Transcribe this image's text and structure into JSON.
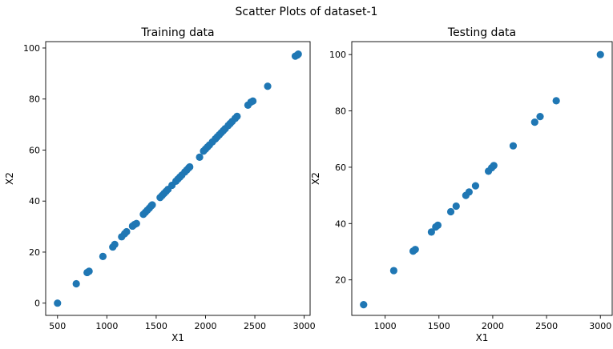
{
  "figure": {
    "suptitle": "Scatter Plots of dataset-1",
    "point_color": "#1f77b4"
  },
  "chart_data": [
    {
      "type": "scatter",
      "title": "Training data",
      "xlabel": "X1",
      "ylabel": "X2",
      "xlim": [
        380,
        3060
      ],
      "ylim": [
        -4.8,
        102.5
      ],
      "xticks": [
        500,
        1000,
        1500,
        2000,
        2500,
        3000
      ],
      "yticks": [
        0,
        20,
        40,
        60,
        80,
        100
      ],
      "grid": false,
      "x": [
        500,
        690,
        800,
        820,
        960,
        1060,
        1080,
        1150,
        1180,
        1200,
        1260,
        1280,
        1300,
        1370,
        1390,
        1410,
        1430,
        1450,
        1460,
        1540,
        1560,
        1580,
        1600,
        1620,
        1660,
        1700,
        1720,
        1740,
        1760,
        1790,
        1810,
        1830,
        1840,
        1940,
        1980,
        2000,
        2020,
        2040,
        2070,
        2100,
        2120,
        2140,
        2160,
        2180,
        2200,
        2230,
        2250,
        2270,
        2300,
        2320,
        2430,
        2460,
        2480,
        2630,
        2910,
        2930,
        2940
      ],
      "y": [
        0,
        7.6,
        12,
        12.5,
        18.3,
        22,
        23,
        26,
        27.2,
        28,
        30.2,
        30.8,
        31.2,
        34.8,
        35.6,
        36.4,
        37.2,
        38.1,
        38.5,
        41.4,
        42.2,
        43,
        43.8,
        44.6,
        46.2,
        47.8,
        48.6,
        49.4,
        50.2,
        51.4,
        52.2,
        53,
        53.4,
        57.2,
        59.6,
        60.4,
        61.2,
        62,
        63.2,
        64.4,
        65.2,
        66,
        66.8,
        67.6,
        68.4,
        69.6,
        70.4,
        71.2,
        72.4,
        73.2,
        77.6,
        78.8,
        79.2,
        85,
        96.8,
        97.2,
        97.6
      ]
    },
    {
      "type": "scatter",
      "title": "Testing data",
      "xlabel": "X1",
      "ylabel": "X2",
      "xlim": [
        690,
        3110
      ],
      "ylim": [
        7.4,
        104.6
      ],
      "xticks": [
        1000,
        1500,
        2000,
        2500,
        3000
      ],
      "yticks": [
        20,
        40,
        60,
        80,
        100
      ],
      "grid": false,
      "x": [
        800,
        1080,
        1260,
        1280,
        1430,
        1470,
        1490,
        1610,
        1660,
        1750,
        1780,
        1840,
        1960,
        1990,
        2010,
        2190,
        2390,
        2440,
        2590,
        3000
      ],
      "y": [
        11.2,
        23.3,
        30.2,
        30.8,
        37,
        38.8,
        39.4,
        44.2,
        46.2,
        50,
        51.2,
        53.4,
        58.6,
        59.8,
        60.6,
        67.6,
        76,
        78,
        83.6,
        100
      ]
    }
  ]
}
